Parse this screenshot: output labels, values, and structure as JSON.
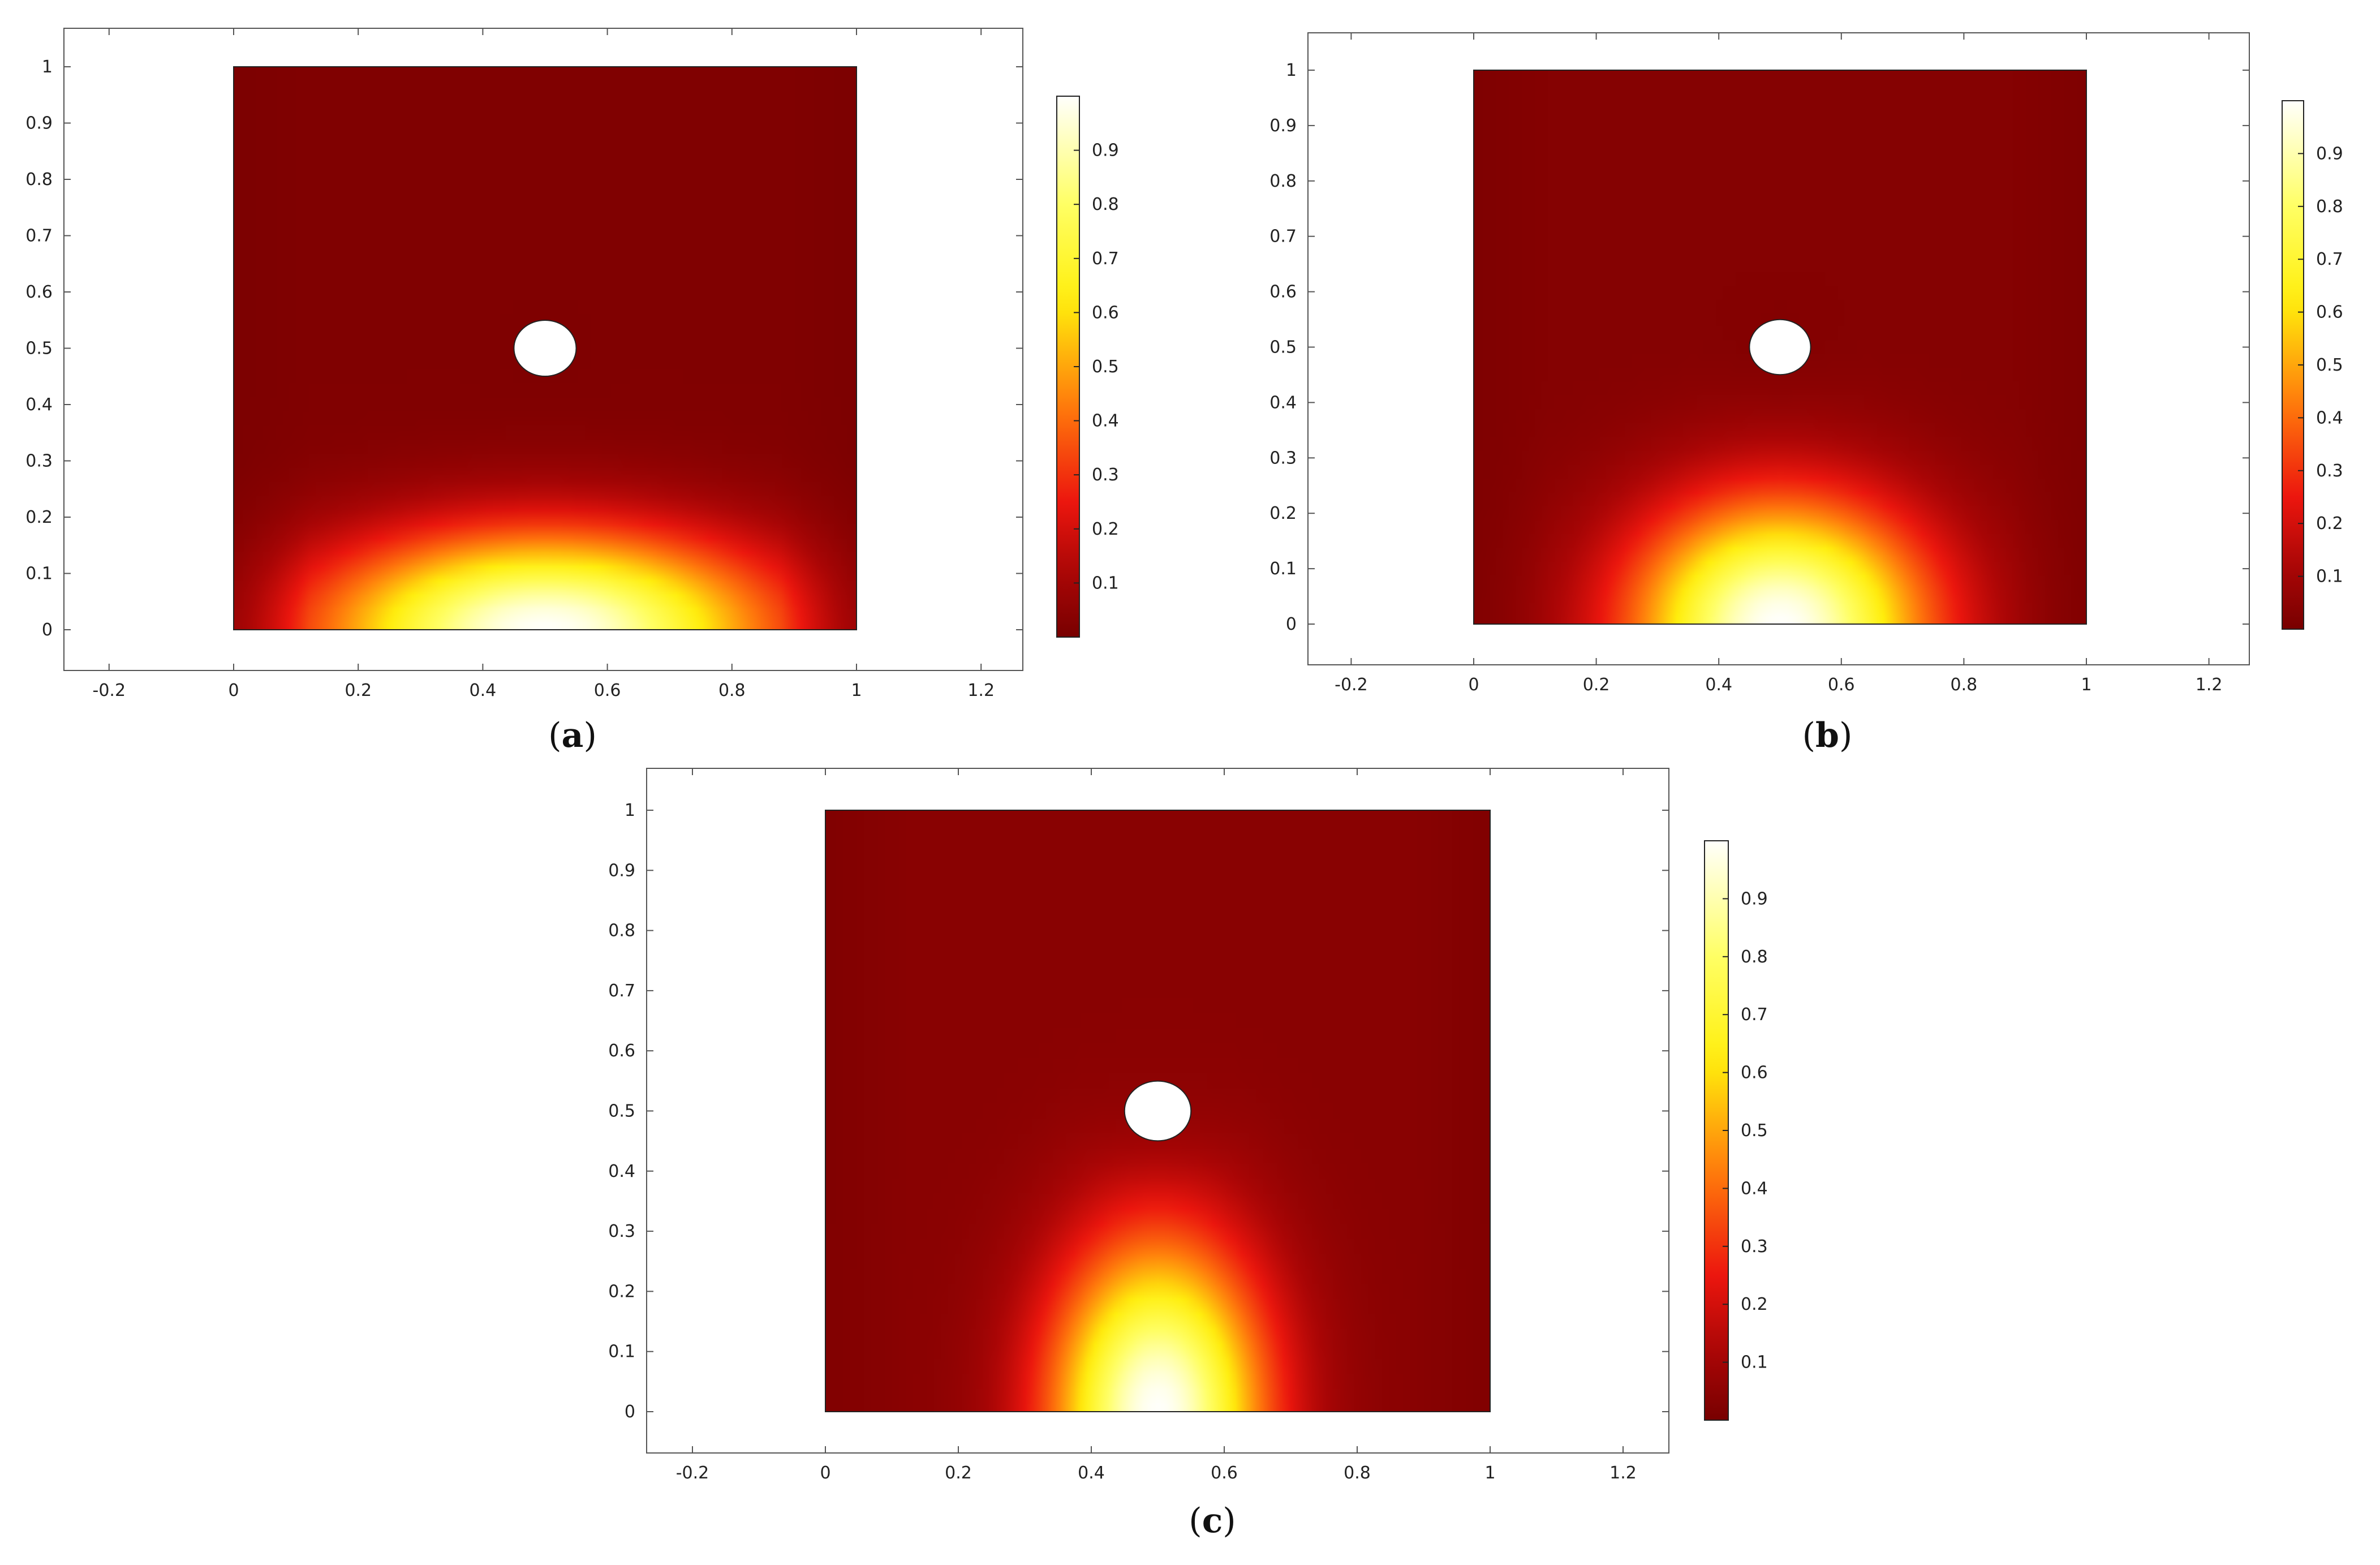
{
  "chart_data": [
    {
      "type": "heatmap",
      "caption_letter": "a",
      "title": "",
      "xlabel": "",
      "ylabel": "",
      "xlim": [
        -0.25,
        1.27
      ],
      "ylim": [
        -0.07,
        1.07
      ],
      "x_ticks": [
        "-0.2",
        "0",
        "0.2",
        "0.4",
        "0.6",
        "0.8",
        "1",
        "1.2"
      ],
      "y_ticks": [
        "0",
        "0.1",
        "0.2",
        "0.3",
        "0.4",
        "0.5",
        "0.6",
        "0.7",
        "0.8",
        "0.9",
        "1"
      ],
      "domain": {
        "x": [
          0,
          1
        ],
        "y": [
          0,
          1
        ]
      },
      "hole": {
        "cx": 0.5,
        "cy": 0.5,
        "radius": 0.05
      },
      "colorbar": {
        "ticks": [
          "0.1",
          "0.2",
          "0.3",
          "0.4",
          "0.5",
          "0.6",
          "0.7",
          "0.8",
          "0.9"
        ],
        "range": [
          0,
          1
        ],
        "colormap": "heat"
      },
      "field": {
        "peak_value": 1.0,
        "peak_location": [
          0.5,
          0.0
        ],
        "spread_x": 0.36,
        "spread_y": 0.17,
        "top_value": 0.02
      }
    },
    {
      "type": "heatmap",
      "caption_letter": "b",
      "title": "",
      "xlabel": "",
      "ylabel": "",
      "xlim": [
        -0.27,
        1.27
      ],
      "ylim": [
        -0.07,
        1.07
      ],
      "x_ticks": [
        "-0.2",
        "0",
        "0.2",
        "0.4",
        "0.6",
        "0.8",
        "1",
        "1.2"
      ],
      "y_ticks": [
        "0",
        "0.1",
        "0.2",
        "0.3",
        "0.4",
        "0.5",
        "0.6",
        "0.7",
        "0.8",
        "0.9",
        "1"
      ],
      "domain": {
        "x": [
          0,
          1
        ],
        "y": [
          0,
          1
        ]
      },
      "hole": {
        "cx": 0.5,
        "cy": 0.5,
        "radius": 0.05
      },
      "colorbar": {
        "ticks": [
          "0.1",
          "0.2",
          "0.3",
          "0.4",
          "0.5",
          "0.6",
          "0.7",
          "0.8",
          "0.9"
        ],
        "range": [
          0,
          1
        ],
        "colormap": "heat"
      },
      "field": {
        "peak_value": 1.0,
        "peak_location": [
          0.5,
          0.0
        ],
        "spread_x": 0.24,
        "spread_y": 0.22,
        "top_value": 0.03
      }
    },
    {
      "type": "heatmap",
      "caption_letter": "c",
      "title": "",
      "xlabel": "",
      "ylabel": "",
      "xlim": [
        -0.27,
        1.27
      ],
      "ylim": [
        -0.07,
        1.07
      ],
      "x_ticks": [
        "-0.2",
        "0",
        "0.2",
        "0.4",
        "0.6",
        "0.8",
        "1",
        "1.2"
      ],
      "y_ticks": [
        "0",
        "0.1",
        "0.2",
        "0.3",
        "0.4",
        "0.5",
        "0.6",
        "0.7",
        "0.8",
        "0.9",
        "1"
      ],
      "domain": {
        "x": [
          0,
          1
        ],
        "y": [
          0,
          1
        ]
      },
      "hole": {
        "cx": 0.5,
        "cy": 0.5,
        "radius": 0.05
      },
      "colorbar": {
        "ticks": [
          "0.1",
          "0.2",
          "0.3",
          "0.4",
          "0.5",
          "0.6",
          "0.7",
          "0.8",
          "0.9"
        ],
        "range": [
          0,
          1
        ],
        "colormap": "heat"
      },
      "field": {
        "peak_value": 1.0,
        "peak_location": [
          0.5,
          0.0
        ],
        "spread_x": 0.16,
        "spread_y": 0.28,
        "top_value": 0.04
      }
    }
  ]
}
